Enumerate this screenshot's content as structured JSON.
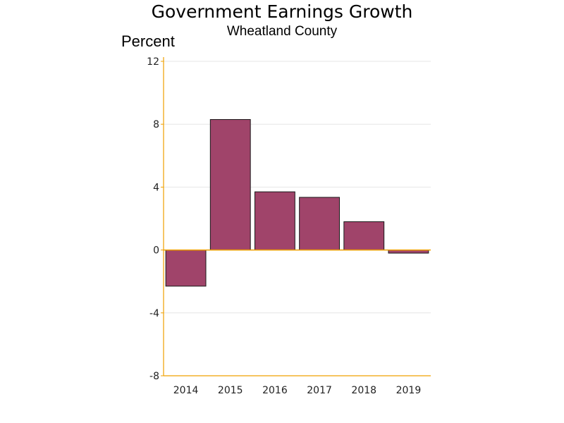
{
  "chart_data": {
    "type": "bar",
    "title": "Government Earnings Growth",
    "subtitle": "Wheatland County",
    "ylabel": "Percent",
    "xlabel": "",
    "categories": [
      "2014",
      "2015",
      "2016",
      "2017",
      "2018",
      "2019"
    ],
    "values": [
      -2.3,
      8.3,
      3.7,
      3.35,
      1.8,
      -0.2
    ],
    "ylim": [
      -8,
      12
    ],
    "yticks": [
      -8,
      -4,
      0,
      4,
      8,
      12
    ],
    "grid": true,
    "legend": "none",
    "colors": {
      "bar_fill": "#a0446a",
      "bar_stroke": "#1a1a1a",
      "axis": "#f0a000",
      "grid": "#e6e6e6",
      "zero_line": "#f0a000"
    }
  }
}
